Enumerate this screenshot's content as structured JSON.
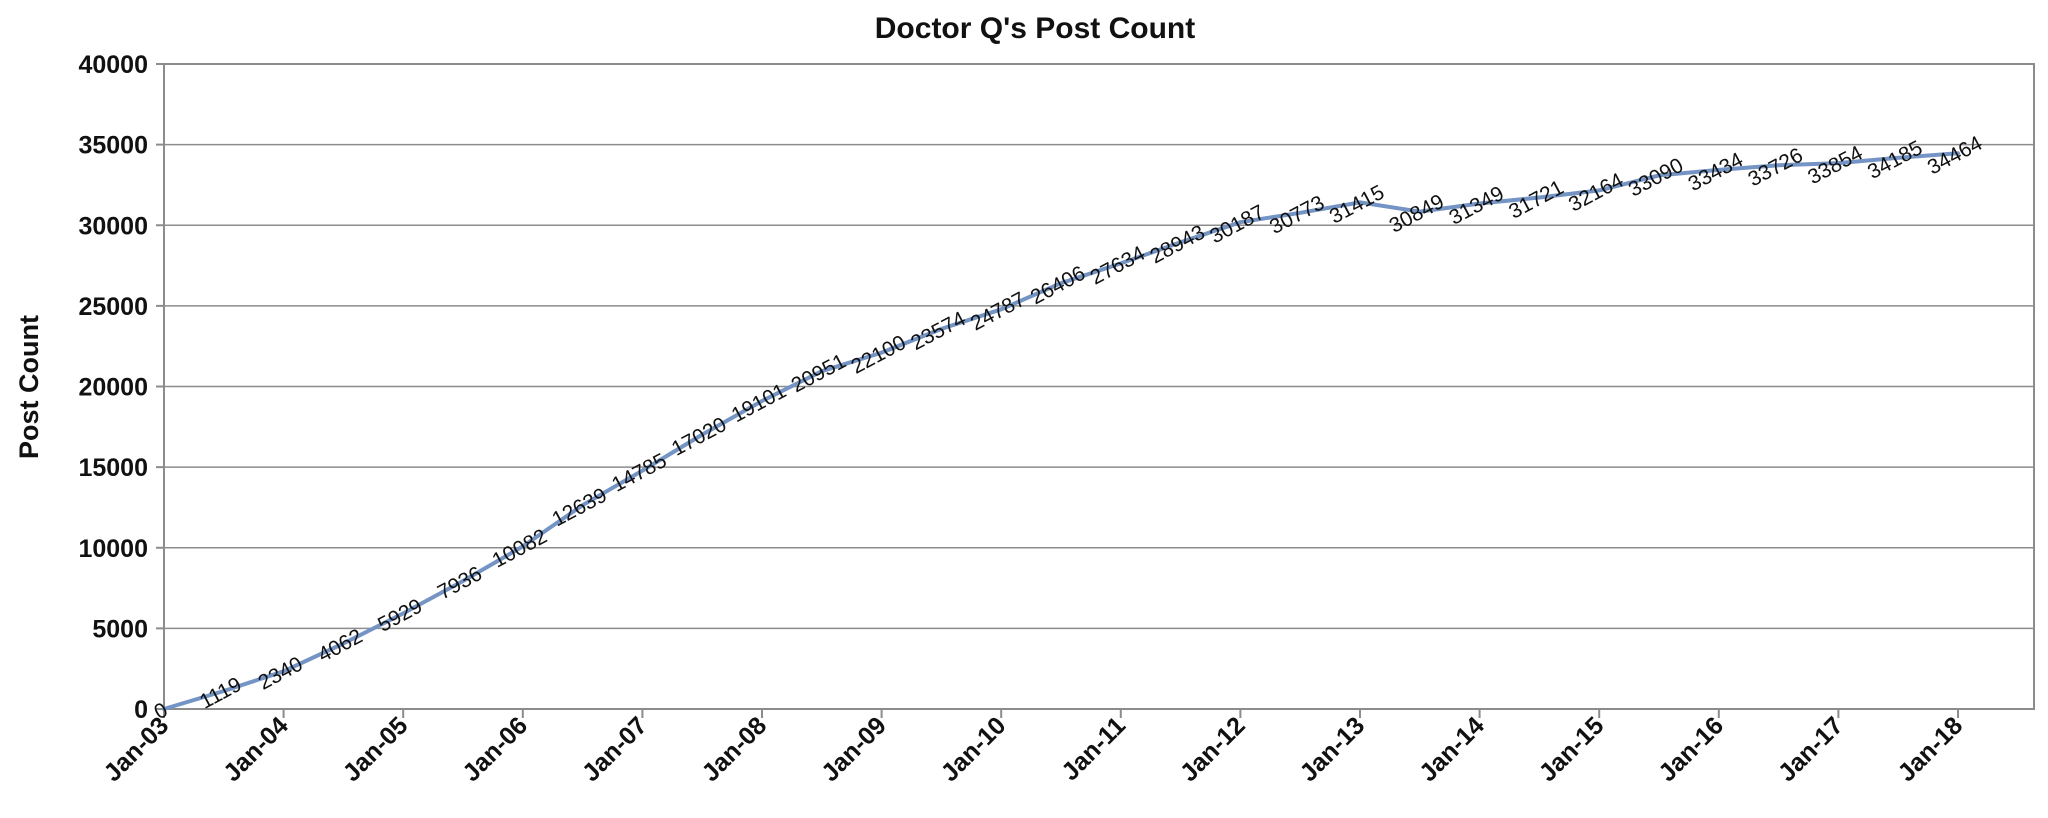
{
  "chart_data": {
    "type": "line",
    "title": "Doctor Q's Post Count",
    "xlabel": "",
    "ylabel": "Post Count",
    "ylim": [
      0,
      40000
    ],
    "yticks": [
      0,
      5000,
      10000,
      15000,
      20000,
      25000,
      30000,
      35000,
      40000
    ],
    "xticks": [
      "Jan-03",
      "Jan-04",
      "Jan-05",
      "Jan-06",
      "Jan-07",
      "Jan-08",
      "Jan-09",
      "Jan-10",
      "Jan-11",
      "Jan-12",
      "Jan-13",
      "Jan-14",
      "Jan-15",
      "Jan-16",
      "Jan-17",
      "Jan-18"
    ],
    "grid": true,
    "line_color": "#7394c4",
    "x": [
      "2003-01",
      "2003-07",
      "2004-01",
      "2004-07",
      "2005-01",
      "2005-07",
      "2006-01",
      "2006-07",
      "2007-01",
      "2007-07",
      "2008-01",
      "2008-07",
      "2009-01",
      "2009-07",
      "2010-01",
      "2010-07",
      "2011-01",
      "2011-07",
      "2012-01",
      "2012-07",
      "2013-01",
      "2013-07",
      "2014-01",
      "2014-07",
      "2015-01",
      "2015-07",
      "2016-01",
      "2016-07",
      "2017-01",
      "2017-07",
      "2018-01"
    ],
    "series": [
      {
        "values": [
          0,
          1119,
          2340,
          4062,
          5929,
          7936,
          10082,
          12639,
          14785,
          17020,
          19101,
          20951,
          22100,
          23574,
          24787,
          26406,
          27634,
          28943,
          30187,
          30773,
          31415,
          30849,
          31349,
          31721,
          32164,
          33090,
          33434,
          33726,
          33854,
          34185,
          34464
        ]
      }
    ]
  }
}
